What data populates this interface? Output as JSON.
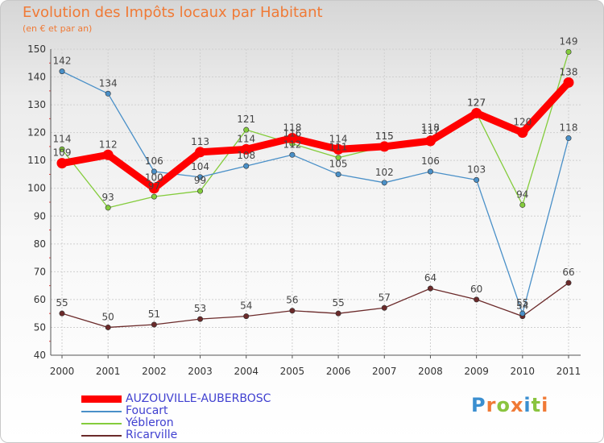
{
  "chart_data": {
    "type": "line",
    "title": "Evolution des Impôts locaux par Habitant",
    "subtitle": "(en € et par an)",
    "xlabel": "",
    "ylabel": "",
    "ylim": [
      40,
      150
    ],
    "yticks": [
      40,
      50,
      60,
      70,
      80,
      90,
      100,
      110,
      120,
      130,
      140,
      150
    ],
    "categories": [
      "2000",
      "2001",
      "2002",
      "2003",
      "2004",
      "2005",
      "2006",
      "2007",
      "2008",
      "2009",
      "2010",
      "2011"
    ],
    "series": [
      {
        "name": "AUZOUVILLE-AUBERBOSC",
        "color": "#ff0000",
        "values": [
          109,
          112,
          100,
          113,
          114,
          118,
          114,
          115,
          117,
          127,
          120,
          138
        ]
      },
      {
        "name": "Foucart",
        "color": "#4a90c8",
        "values": [
          142,
          134,
          106,
          104,
          108,
          112,
          105,
          102,
          106,
          103,
          55,
          118
        ]
      },
      {
        "name": "Yébleron",
        "color": "#84cc3c",
        "values": [
          114,
          93,
          97,
          99,
          121,
          116,
          111,
          115,
          118,
          127,
          94,
          149
        ]
      },
      {
        "name": "Ricarville",
        "color": "#6b2a2a",
        "values": [
          55,
          50,
          51,
          53,
          54,
          56,
          55,
          57,
          64,
          60,
          54,
          66
        ]
      }
    ],
    "legend_position": "bottom-left"
  },
  "logo": {
    "letters": [
      "P",
      "r",
      "o",
      "x",
      "i",
      "t",
      "i"
    ],
    "colors": [
      "#3b8fd0",
      "#f07a36",
      "#8ac43f",
      "#f07a36",
      "#3b8fd0",
      "#8ac43f",
      "#f07a36"
    ]
  }
}
